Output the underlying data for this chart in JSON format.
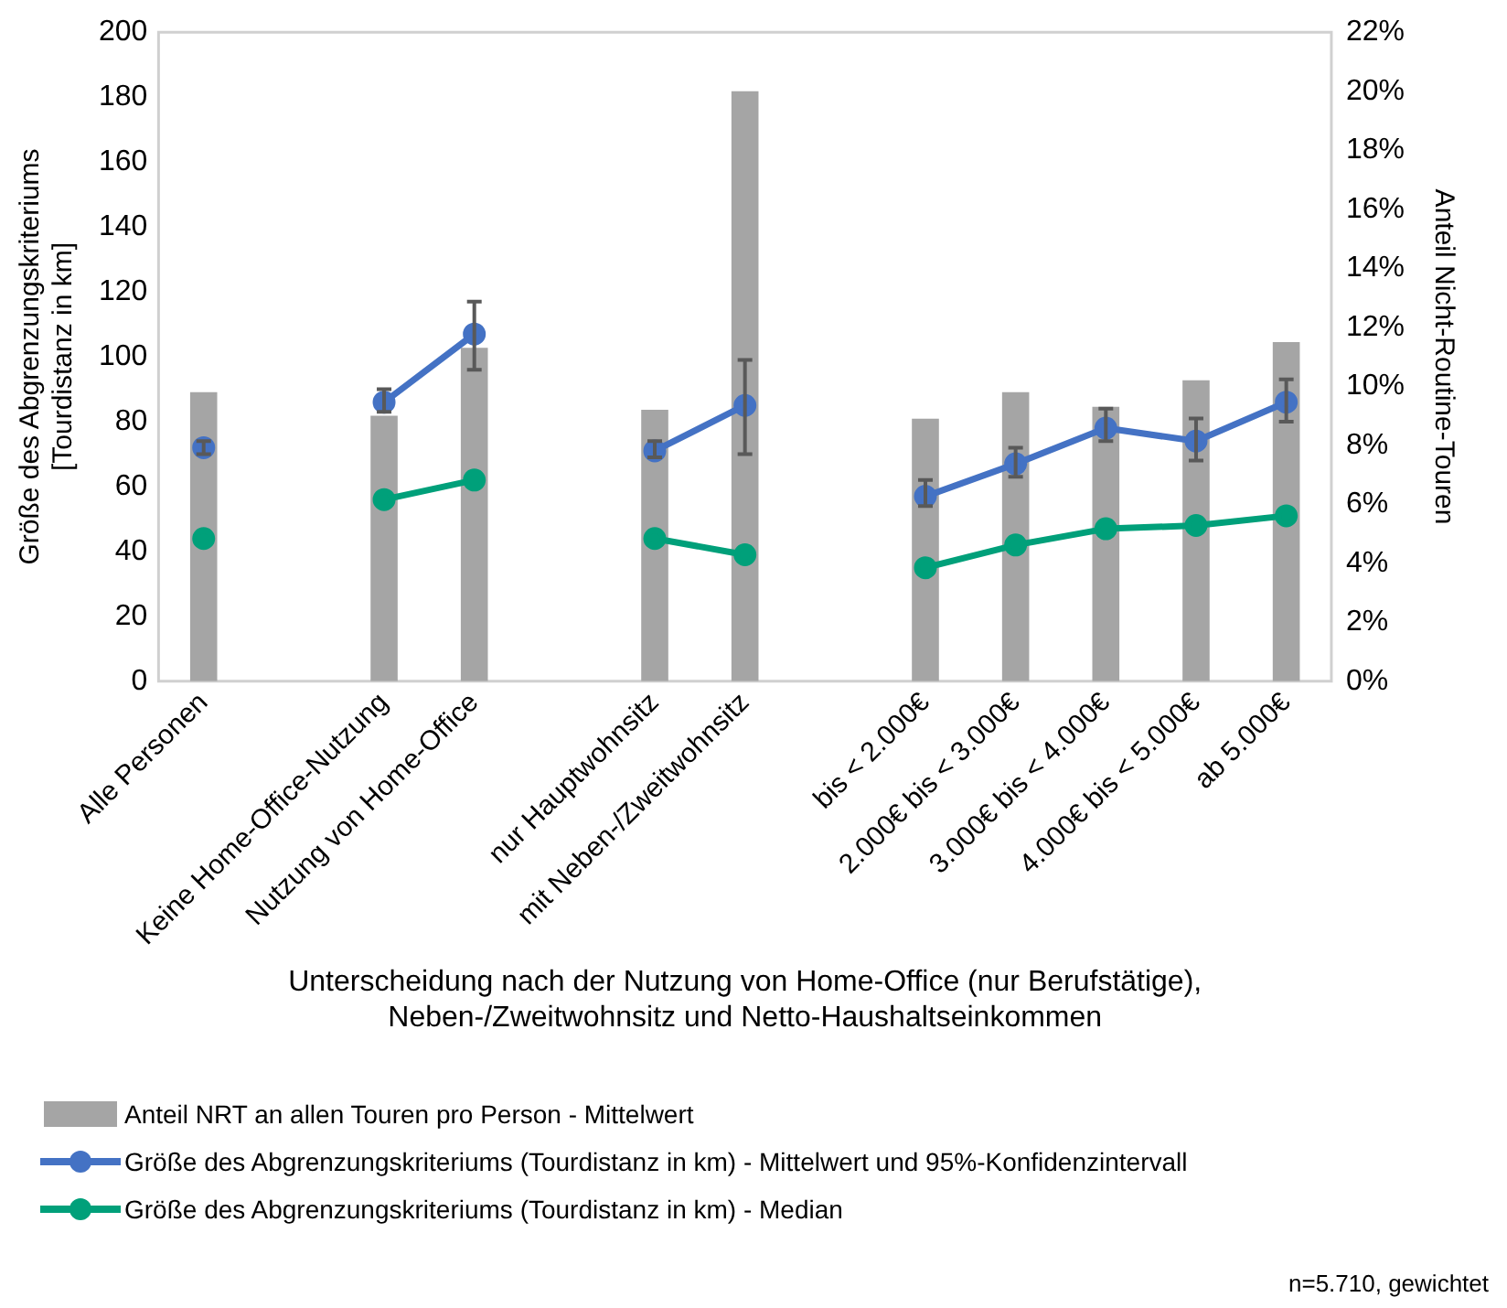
{
  "chart_data": {
    "type": "bar",
    "xlabel": "Unterscheidung nach der Nutzung von Home-Office (nur Berufstätige),\nNeben-/Zweitwohnsitz und Netto-Haushaltseinkommen",
    "ylabel": "Größe des Abgrenzungskriteriums\n[Tourdistanz in km]",
    "y2label": "Anteil Nicht-Routine-Touren",
    "categories": [
      "Alle Personen",
      null,
      "Keine Home-Office-Nutzung",
      "Nutzung von Home-Office",
      null,
      "nur Hauptwohnsitz",
      "mit Neben-/Zweitwohnsitz",
      null,
      "bis < 2.000€",
      "2.000€ bis < 3.000€",
      "3.000€ bis < 4.000€",
      "4.000€ bis < 5.000€",
      "ab 5.000€"
    ],
    "series": [
      {
        "name": "Anteil NRT an allen Touren pro Person  - Mittelwert",
        "axis": "y2",
        "color": "#a5a5a5",
        "values": [
          9.8,
          null,
          9.0,
          11.3,
          null,
          9.2,
          20.0,
          null,
          8.9,
          9.8,
          9.3,
          10.2,
          11.5
        ]
      },
      {
        "name": "Größe des Abgrenzungskriteriums (Tourdistanz in km)  - Mittelwert und 95%-Konfidenzintervall",
        "type": "line",
        "color": "#4472c4",
        "values": [
          72,
          null,
          86,
          107,
          null,
          71,
          85,
          null,
          57,
          67,
          78,
          74,
          86
        ],
        "errors": [
          [
            70,
            74
          ],
          null,
          [
            83,
            90
          ],
          [
            96,
            117
          ],
          null,
          [
            69,
            74
          ],
          [
            70,
            99
          ],
          null,
          [
            54,
            62
          ],
          [
            63,
            72
          ],
          [
            74,
            84
          ],
          [
            68,
            81
          ],
          [
            80,
            93
          ]
        ]
      },
      {
        "name": "Größe des Abgrenzungskriteriums (Tourdistanz in km)  - Median",
        "type": "line",
        "color": "#00a07a",
        "values": [
          44,
          null,
          56,
          62,
          null,
          44,
          39,
          null,
          35,
          42,
          47,
          48,
          51
        ]
      }
    ],
    "ylim": [
      0,
      200
    ],
    "yticks": [
      0,
      20,
      40,
      60,
      80,
      100,
      120,
      140,
      160,
      180,
      200
    ],
    "y2lim": [
      0,
      22
    ],
    "y2ticks": [
      {
        "value": 0,
        "label": "0%"
      },
      {
        "value": 2,
        "label": "2%"
      },
      {
        "value": 4,
        "label": "4%"
      },
      {
        "value": 6,
        "label": "6%"
      },
      {
        "value": 8,
        "label": "8%"
      },
      {
        "value": 10,
        "label": "10%"
      },
      {
        "value": 12,
        "label": "12%"
      },
      {
        "value": 14,
        "label": "14%"
      },
      {
        "value": 16,
        "label": "16%"
      },
      {
        "value": 18,
        "label": "18%"
      },
      {
        "value": 20,
        "label": "20%"
      },
      {
        "value": 22,
        "label": "22%"
      }
    ],
    "grid": false,
    "legend": "bottom",
    "marker": "circle",
    "annotations": [
      "n=5.710, gewichtet"
    ]
  }
}
